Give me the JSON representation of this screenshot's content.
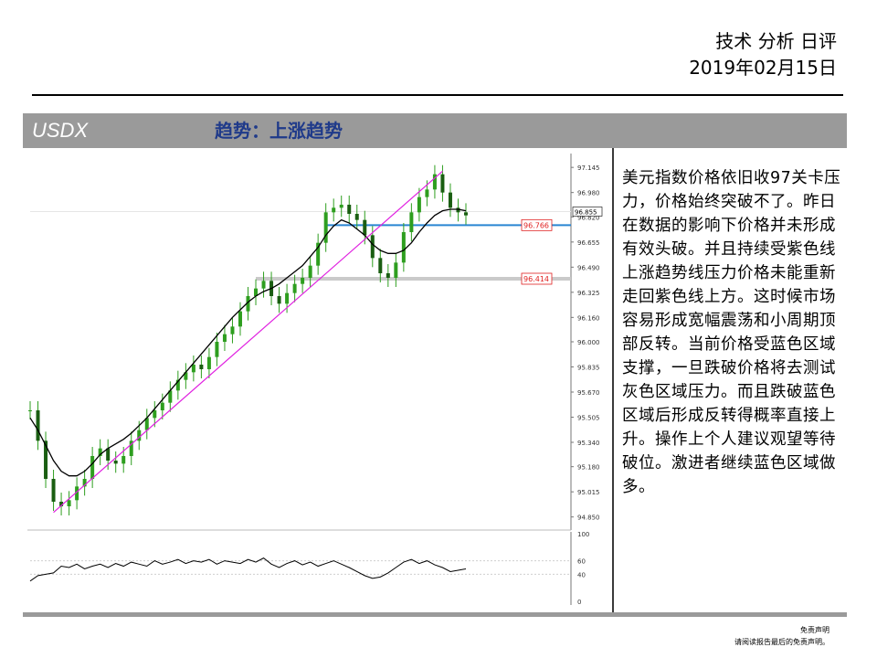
{
  "header": {
    "report_type": "技术 分析 日评",
    "date": "2019年02月15日"
  },
  "banner": {
    "symbol": "USDX",
    "trend": "趋势：上涨趋势"
  },
  "commentary": "美元指数价格依旧收97关卡压力，价格始终突破不了。昨日在数据的影响下价格并未形成有效头破。并且持续受紫色线上涨趋势线压力价格未能重新走回紫色线上方。这时候市场容易形成宽幅震荡和小周期顶部反转。当前价格受蓝色区域支撑，一旦跌破价格将去测试灰色区域压力。而且跌破蓝色区域后形成反转得概率直接上升。操作上个人建议观望等待破位。激进者继续蓝色区域做多。",
  "footer": {
    "disclaimer_title": "免责声明",
    "disclaimer_text": "请阅读报告最后的免责声明。"
  },
  "colors": {
    "banner_bg": "#9a9a9a",
    "trend_text": "#1f3a8a",
    "candle": "#2e9e1f",
    "trendline": "#e020e0",
    "support": "#1e7fd0",
    "resistance": "#c8c8c8",
    "ma": "#000000",
    "label_red": "#e02020"
  },
  "chart_data": {
    "type": "line",
    "price_axis": {
      "ylim": [
        94.8,
        97.2
      ],
      "ticks": [
        "97.145",
        "96.980",
        "96.820",
        "96.655",
        "96.490",
        "96.325",
        "96.160",
        "96.000",
        "95.835",
        "95.670",
        "95.505",
        "95.340",
        "95.180",
        "95.015",
        "94.850"
      ]
    },
    "current_price": "96.855",
    "levels": [
      {
        "value": 96.766,
        "label": "96.766",
        "color": "#1e7fd0"
      },
      {
        "value": 96.414,
        "label": "96.414",
        "color": "#c8c8c8"
      }
    ],
    "price_series": [
      95.55,
      95.35,
      95.1,
      94.95,
      94.92,
      94.96,
      95.05,
      95.1,
      95.25,
      95.3,
      95.22,
      95.2,
      95.25,
      95.35,
      95.42,
      95.5,
      95.55,
      95.6,
      95.68,
      95.75,
      95.8,
      95.85,
      95.82,
      95.9,
      96.0,
      96.05,
      96.1,
      96.2,
      96.3,
      96.35,
      96.4,
      96.3,
      96.25,
      96.32,
      96.38,
      96.42,
      96.5,
      96.65,
      96.85,
      96.88,
      96.9,
      96.84,
      96.8,
      96.7,
      96.55,
      96.45,
      96.42,
      96.52,
      96.72,
      96.85,
      96.95,
      97.0,
      97.1,
      96.98,
      96.88,
      96.85,
      96.83
    ],
    "ma_series": [
      95.5,
      95.42,
      95.32,
      95.22,
      95.15,
      95.12,
      95.12,
      95.15,
      95.2,
      95.26,
      95.3,
      95.33,
      95.36,
      95.4,
      95.45,
      95.5,
      95.56,
      95.62,
      95.68,
      95.74,
      95.8,
      95.86,
      95.92,
      95.98,
      96.04,
      96.1,
      96.16,
      96.21,
      96.26,
      96.3,
      96.33,
      96.35,
      96.38,
      96.42,
      96.46,
      96.5,
      96.56,
      96.62,
      96.7,
      96.76,
      96.8,
      96.78,
      96.74,
      96.7,
      96.64,
      96.6,
      96.58,
      96.58,
      96.6,
      96.65,
      96.72,
      96.78,
      96.83,
      96.86,
      96.87,
      96.87,
      96.86
    ],
    "trendline": {
      "from": 94.88,
      "to": 97.12
    },
    "oscillator": {
      "ylim": [
        0,
        100
      ],
      "ticks": [
        "100",
        "60",
        "40",
        "0"
      ],
      "guides": [
        60,
        40
      ],
      "values": [
        30,
        38,
        40,
        42,
        52,
        50,
        55,
        48,
        52,
        55,
        50,
        56,
        52,
        58,
        55,
        52,
        60,
        55,
        58,
        62,
        56,
        60,
        58,
        62,
        55,
        60,
        58,
        56,
        62,
        58,
        64,
        55,
        50,
        56,
        60,
        54,
        58,
        52,
        56,
        60,
        55,
        50,
        44,
        38,
        34,
        36,
        42,
        50,
        58,
        62,
        56,
        60,
        54,
        50,
        44,
        46,
        48
      ]
    }
  }
}
